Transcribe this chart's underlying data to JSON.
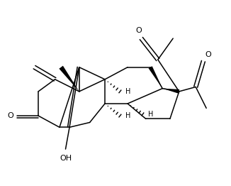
{
  "background": "#ffffff",
  "line_color": "#000000",
  "lw": 1.1,
  "figsize": [
    3.26,
    2.62
  ],
  "dpi": 100,
  "xlim": [
    0.0,
    6.8
  ],
  "ylim": [
    -0.3,
    5.8
  ]
}
